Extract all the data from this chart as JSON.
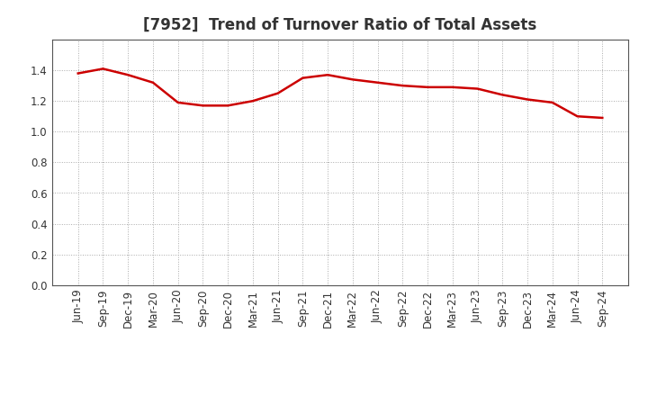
{
  "title": "[7952]  Trend of Turnover Ratio of Total Assets",
  "x_labels": [
    "Jun-19",
    "Sep-19",
    "Dec-19",
    "Mar-20",
    "Jun-20",
    "Sep-20",
    "Dec-20",
    "Mar-21",
    "Jun-21",
    "Sep-21",
    "Dec-21",
    "Mar-22",
    "Jun-22",
    "Sep-22",
    "Dec-22",
    "Mar-23",
    "Jun-23",
    "Sep-23",
    "Dec-23",
    "Mar-24",
    "Jun-24",
    "Sep-24"
  ],
  "y_values": [
    1.38,
    1.41,
    1.37,
    1.32,
    1.19,
    1.17,
    1.17,
    1.2,
    1.25,
    1.35,
    1.37,
    1.34,
    1.32,
    1.3,
    1.29,
    1.29,
    1.28,
    1.24,
    1.21,
    1.19,
    1.1,
    1.09
  ],
  "line_color": "#cc0000",
  "ylim": [
    0.0,
    1.6
  ],
  "yticks": [
    0.0,
    0.2,
    0.4,
    0.6,
    0.8,
    1.0,
    1.2,
    1.4
  ],
  "grid_color": "#aaaaaa",
  "background_color": "#ffffff",
  "title_color": "#333333",
  "title_fontsize": 12,
  "tick_fontsize": 8.5,
  "line_width": 1.8
}
